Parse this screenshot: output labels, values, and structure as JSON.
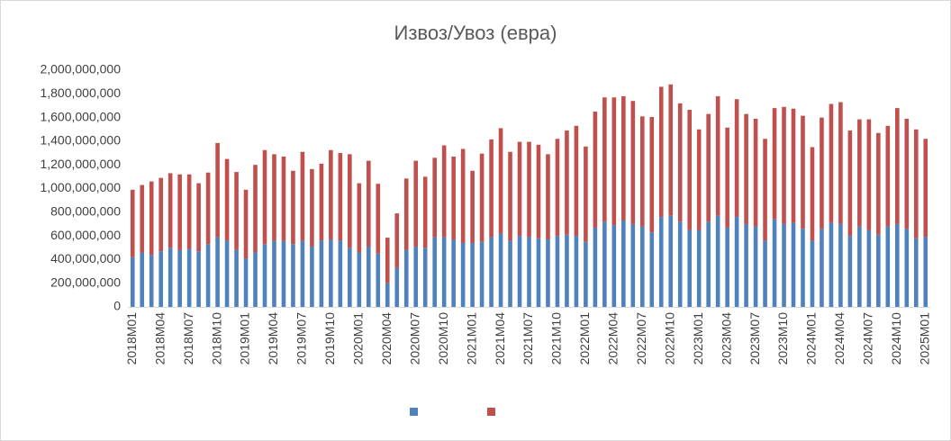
{
  "chart_data": {
    "type": "stacked_bar",
    "title": "Извоз/Увоз (евра)",
    "categories": [
      "2018M01",
      null,
      null,
      "2018M04",
      null,
      null,
      "2018M07",
      null,
      null,
      "2018M10",
      null,
      null,
      "2019M01",
      null,
      null,
      "2019M04",
      null,
      null,
      "2019M07",
      null,
      null,
      "2019M10",
      null,
      null,
      "2020M01",
      null,
      null,
      "2020M04",
      null,
      null,
      "2020M07",
      null,
      null,
      "2020M10",
      null,
      null,
      "2021M01",
      null,
      null,
      "2021M04",
      null,
      null,
      "2021M07",
      null,
      null,
      "2021M10",
      null,
      null,
      "2022M01",
      null,
      null,
      "2022M04",
      null,
      null,
      "2022M07",
      null,
      null,
      "2022M10",
      null,
      null,
      "2023M01",
      null,
      null,
      "2023M04",
      null,
      null,
      "2023M07",
      null,
      null,
      "2023M10",
      null,
      null,
      "2024M01",
      null,
      null,
      "2024M04",
      null,
      null,
      "2024M07",
      null,
      null,
      "2024M10",
      null,
      null,
      "2025M01"
    ],
    "series": [
      {
        "color": "#4f81bd",
        "values": [
          420000000,
          460000000,
          440000000,
          470000000,
          500000000,
          480000000,
          490000000,
          470000000,
          530000000,
          590000000,
          560000000,
          480000000,
          410000000,
          460000000,
          530000000,
          560000000,
          560000000,
          530000000,
          560000000,
          510000000,
          560000000,
          570000000,
          560000000,
          500000000,
          460000000,
          510000000,
          450000000,
          200000000,
          330000000,
          480000000,
          510000000,
          500000000,
          590000000,
          590000000,
          570000000,
          540000000,
          540000000,
          550000000,
          590000000,
          620000000,
          560000000,
          600000000,
          590000000,
          580000000,
          570000000,
          600000000,
          610000000,
          600000000,
          550000000,
          670000000,
          720000000,
          690000000,
          730000000,
          700000000,
          680000000,
          630000000,
          760000000,
          770000000,
          720000000,
          650000000,
          650000000,
          720000000,
          770000000,
          670000000,
          760000000,
          700000000,
          680000000,
          560000000,
          740000000,
          700000000,
          710000000,
          660000000,
          560000000,
          660000000,
          710000000,
          700000000,
          600000000,
          680000000,
          650000000,
          610000000,
          680000000,
          700000000,
          660000000,
          580000000,
          590000000
        ]
      },
      {
        "color": "#c0504d",
        "values": [
          570000000,
          570000000,
          620000000,
          620000000,
          630000000,
          640000000,
          630000000,
          575000000,
          605000000,
          795000000,
          690000000,
          660000000,
          580000000,
          740000000,
          795000000,
          730000000,
          710000000,
          620000000,
          750000000,
          655000000,
          650000000,
          755000000,
          740000000,
          790000000,
          585000000,
          725000000,
          590000000,
          385000000,
          460000000,
          605000000,
          725000000,
          600000000,
          670000000,
          775000000,
          700000000,
          795000000,
          610000000,
          745000000,
          825000000,
          890000000,
          750000000,
          795000000,
          805000000,
          790000000,
          720000000,
          820000000,
          880000000,
          930000000,
          805000000,
          980000000,
          1050000000,
          1080000000,
          1050000000,
          1040000000,
          930000000,
          975000000,
          1100000000,
          1110000000,
          1000000000,
          1015000000,
          850000000,
          910000000,
          1010000000,
          845000000,
          995000000,
          930000000,
          910000000,
          860000000,
          940000000,
          990000000,
          965000000,
          955000000,
          790000000,
          940000000,
          1005000000,
          1030000000,
          890000000,
          905000000,
          935000000,
          860000000,
          850000000,
          980000000,
          930000000,
          920000000,
          830000000
        ]
      }
    ],
    "ylim": [
      0,
      2000000000
    ],
    "yticks": [
      0,
      {
        "value": 200000000,
        "label": "200,000,000"
      },
      {
        "value": 400000000,
        "label": "400,000,000"
      },
      {
        "value": 600000000,
        "label": "600,000,000"
      },
      {
        "value": 800000000,
        "label": "800,000,000"
      },
      {
        "value": 1000000000,
        "label": "1,000,000,000"
      },
      {
        "value": 1200000000,
        "label": "1,200,000,000"
      },
      {
        "value": 1400000000,
        "label": "1,400,000,000"
      },
      {
        "value": 1600000000,
        "label": "1,600,000,000"
      },
      {
        "value": 1800000000,
        "label": "1,800,000,000"
      },
      {
        "value": 2000000000,
        "label": "2,000,000,000"
      }
    ],
    "grid": false
  }
}
